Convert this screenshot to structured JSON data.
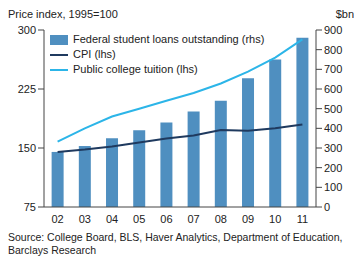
{
  "chart_data": {
    "type": "bar",
    "y_label": "Price index, 1995=100",
    "y2_label": "$bn",
    "source": "Source: College Board, BLS, Haver Analytics, Department of Education, Barclays Research",
    "categories": [
      "02",
      "03",
      "04",
      "05",
      "06",
      "07",
      "08",
      "09",
      "10",
      "11"
    ],
    "series": [
      {
        "name": "Federal student loans outstanding (rhs)",
        "type": "bar",
        "axis": "y2",
        "color": "#4f8fc0",
        "values": [
          280,
          310,
          350,
          390,
          430,
          485,
          540,
          655,
          750,
          860
        ]
      },
      {
        "name": "CPI (lhs)",
        "type": "line",
        "color": "#1f3a5f",
        "values": [
          145,
          148,
          152,
          157,
          162,
          166,
          173,
          172,
          175,
          180
        ]
      },
      {
        "name": "Public college tuition (lhs)",
        "type": "line",
        "color": "#2cb5e8",
        "values": [
          158,
          175,
          190,
          200,
          210,
          220,
          232,
          247,
          265,
          288
        ]
      }
    ],
    "ylim": [
      75,
      300
    ],
    "yticks": [
      75,
      150,
      225,
      300
    ],
    "y2lim": [
      0,
      900
    ],
    "y2ticks": [
      0,
      100,
      200,
      300,
      400,
      500,
      600,
      700,
      800,
      900
    ],
    "legend": "top-left",
    "grid": false
  }
}
